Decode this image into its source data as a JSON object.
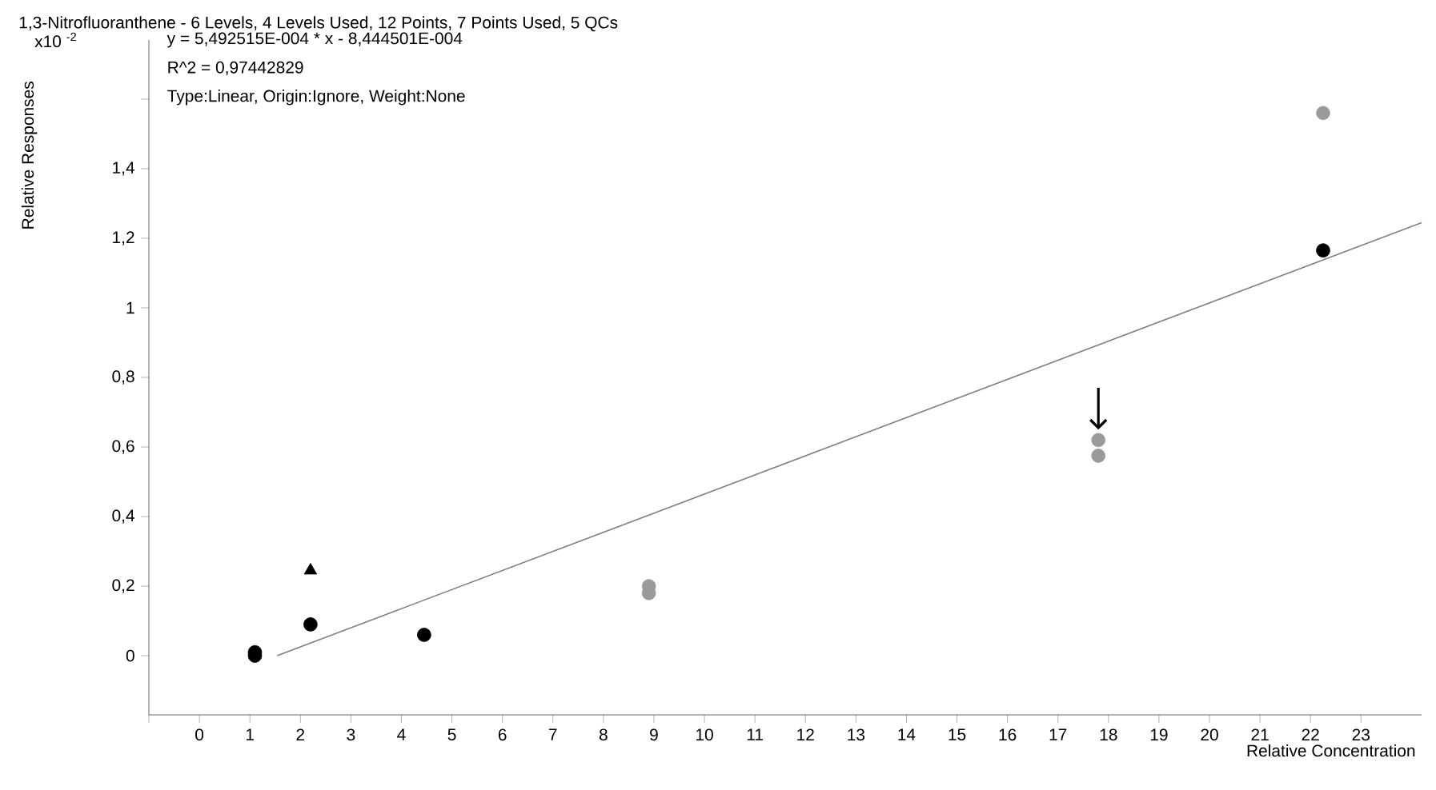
{
  "chart_data": {
    "type": "scatter",
    "title": "1,3-Nitrofluoranthene - 6 Levels, 4 Levels Used, 12 Points, 7 Points Used, 5 QCs",
    "xlabel": "Relative Concentration",
    "ylabel": "Relative Responses",
    "annotations": [
      "x10 $^{-2}$",
      "y = 5,492515E-004 * x  - 8,444501E-004",
      "R^2 = 0,97442829",
      "Type:Linear, Origin:Ignore, Weight:None"
    ],
    "xlim": [
      -1,
      24.2
    ],
    "ylim": [
      -0.17,
      1.77
    ],
    "xticks": [
      {
        "value": -1,
        "label": null
      },
      0,
      1,
      2,
      3,
      4,
      5,
      6,
      7,
      8,
      9,
      10,
      11,
      12,
      13,
      14,
      15,
      16,
      17,
      18,
      19,
      20,
      21,
      22,
      23
    ],
    "yticks": [
      0,
      {
        "value": 0.2,
        "label": "0,2"
      },
      {
        "value": 0.4,
        "label": "0,4"
      },
      {
        "value": 0.6,
        "label": "0,6"
      },
      {
        "value": 0.8,
        "label": "0,8"
      },
      1,
      {
        "value": 1.2,
        "label": "1,2"
      },
      {
        "value": 1.4,
        "label": "1,4"
      },
      {
        "value": 1.6,
        "label": null
      }
    ],
    "grid": false,
    "series": [
      {
        "type": "line",
        "color": "#808080",
        "marker": "none",
        "x": [
          1.54,
          24.2
        ],
        "values": [
          0.0,
          1.245
        ]
      },
      {
        "color": "#000000",
        "marker": "circle",
        "x": [
          1.1,
          1.1,
          2.2,
          4.45,
          22.25
        ],
        "values": [
          0.01,
          0.0,
          0.09,
          0.06,
          1.165
        ]
      },
      {
        "color": "#000000",
        "marker": "triangle",
        "x": [
          2.2
        ],
        "values": [
          0.245
        ]
      },
      {
        "color": "#9a9a9a",
        "marker": "circle",
        "x": [
          8.9,
          8.9,
          17.8,
          17.8,
          22.25
        ],
        "values": [
          0.2,
          0.18,
          0.62,
          0.575,
          1.56
        ]
      }
    ]
  }
}
